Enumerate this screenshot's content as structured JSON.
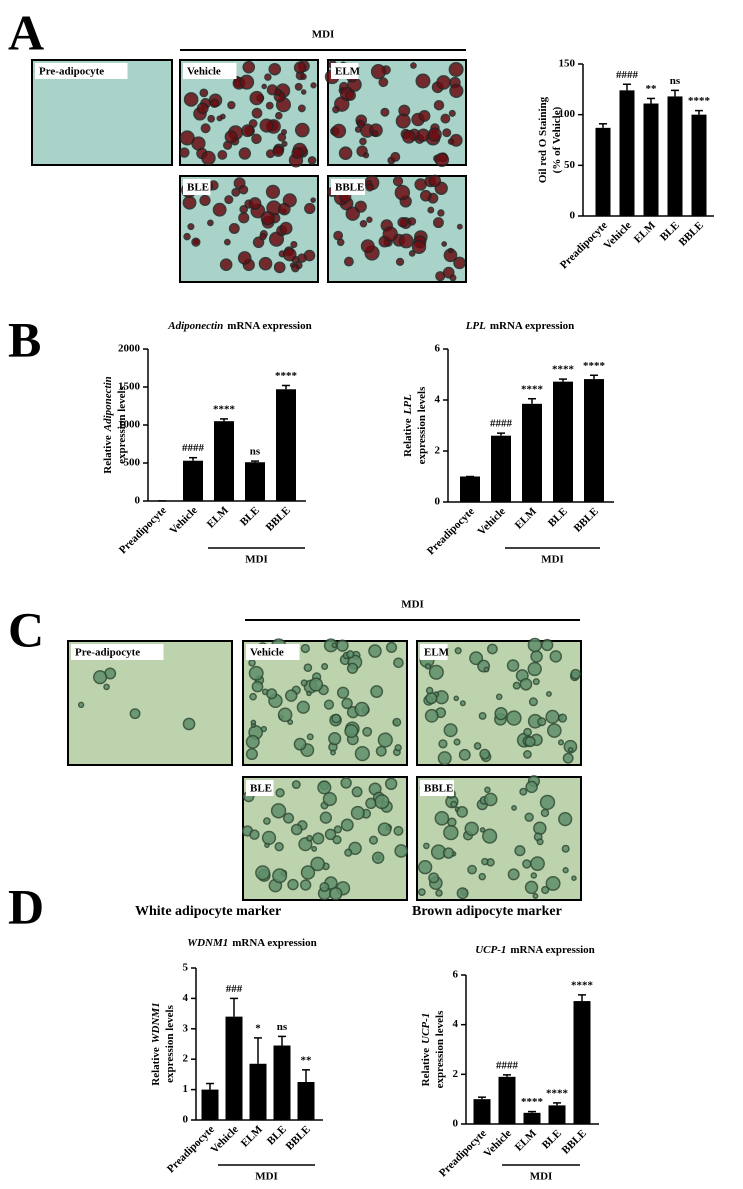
{
  "panel_labels": [
    "A",
    "B",
    "C",
    "D"
  ],
  "micrographs": {
    "A": {
      "group": "MDI",
      "labels": [
        "Pre-adipocyte",
        "Vehicle",
        "ELM",
        "BLE",
        "BBLE"
      ]
    },
    "C": {
      "group": "MDI",
      "labels": [
        "Pre-adipocyte",
        "Vehicle",
        "ELM",
        "BLE",
        "BBLE"
      ]
    }
  },
  "marker_labels": [
    "White adipocyte marker",
    "Brown adipocyte marker"
  ],
  "chart_data": [
    {
      "type": "bar",
      "ylabel": [
        [
          {
            "text": "Oil red O Staining"
          }
        ],
        [
          {
            "text": "(% of Vehicle)"
          }
        ]
      ],
      "categories": [
        "Preadipocyte",
        "Vehicle",
        "ELM",
        "BLE",
        "BBLE"
      ],
      "values": [
        87,
        124,
        111,
        118,
        100
      ],
      "errors": [
        4,
        6,
        5,
        6,
        4
      ],
      "annotations": [
        null,
        "####",
        "**",
        "ns",
        "****"
      ],
      "ylim": [
        0,
        150
      ],
      "yticks": [
        0,
        50,
        100,
        150
      ],
      "color": "#000000"
    },
    {
      "type": "bar",
      "title": [
        {
          "text": "Adiponectin",
          "italic": true
        },
        {
          "text": "mRNA expression"
        }
      ],
      "ylabel": [
        [
          {
            "text": "Relative"
          },
          {
            "text": "Adiponectin",
            "italic": true
          }
        ],
        [
          {
            "text": "expression levels"
          }
        ]
      ],
      "categories": [
        "Preadipocyte",
        "Vehicle",
        "ELM",
        "BLE",
        "BBLE"
      ],
      "values": [
        1,
        530,
        1050,
        510,
        1470
      ],
      "errors": [
        0,
        40,
        30,
        15,
        50
      ],
      "annotations": [
        null,
        "####",
        "****",
        "ns",
        "****"
      ],
      "ylim": [
        0,
        2000
      ],
      "yticks": [
        0,
        500,
        1000,
        1500,
        2000
      ],
      "color": "#000000",
      "group_label": "MDI"
    },
    {
      "type": "bar",
      "title": [
        {
          "text": "LPL",
          "italic": true
        },
        {
          "text": "mRNA expression"
        }
      ],
      "ylabel": [
        [
          {
            "text": "Relative"
          },
          {
            "text": "LPL",
            "italic": true
          }
        ],
        [
          {
            "text": "expression levels"
          }
        ]
      ],
      "categories": [
        "Preadipocyte",
        "Vehicle",
        "ELM",
        "BLE",
        "BBLE"
      ],
      "values": [
        1,
        2.6,
        3.85,
        4.72,
        4.82
      ],
      "errors": [
        0,
        0.1,
        0.2,
        0.1,
        0.15
      ],
      "annotations": [
        null,
        "####",
        "****",
        "****",
        "****"
      ],
      "ylim": [
        0,
        6
      ],
      "yticks": [
        0,
        2,
        4,
        6
      ],
      "color": "#000000",
      "group_label": "MDI"
    },
    {
      "type": "bar",
      "title": [
        {
          "text": "WDNM1",
          "italic": true
        },
        {
          "text": "mRNA expression"
        }
      ],
      "ylabel": [
        [
          {
            "text": "Relative"
          },
          {
            "text": "WDNM1",
            "italic": true
          }
        ],
        [
          {
            "text": "expression levels"
          }
        ]
      ],
      "categories": [
        "Preadipocyte",
        "Vehicle",
        "ELM",
        "BLE",
        "BBLE"
      ],
      "values": [
        1,
        3.4,
        1.85,
        2.45,
        1.25
      ],
      "errors": [
        0.2,
        0.6,
        0.85,
        0.3,
        0.4
      ],
      "annotations": [
        null,
        "###",
        "*",
        "ns",
        "**"
      ],
      "ylim": [
        0,
        5
      ],
      "yticks": [
        0,
        1,
        2,
        3,
        4,
        5
      ],
      "color": "#000000",
      "group_label": "MDI"
    },
    {
      "type": "bar",
      "title": [
        {
          "text": "UCP-1",
          "italic": true
        },
        {
          "text": "mRNA expression"
        }
      ],
      "ylabel": [
        [
          {
            "text": "Relative"
          },
          {
            "text": "UCP-1",
            "italic": true
          }
        ],
        [
          {
            "text": "expression levels"
          }
        ]
      ],
      "categories": [
        "Preadipocyte",
        "Vehicle",
        "ELM",
        "BLE",
        "BBLE"
      ],
      "values": [
        1,
        1.9,
        0.45,
        0.75,
        4.95
      ],
      "errors": [
        0.08,
        0.08,
        0.05,
        0.1,
        0.25
      ],
      "annotations": [
        null,
        "####",
        "****",
        "****",
        "****"
      ],
      "ylim": [
        0,
        6
      ],
      "yticks": [
        0,
        2,
        4,
        6
      ],
      "color": "#000000",
      "group_label": "MDI"
    }
  ]
}
